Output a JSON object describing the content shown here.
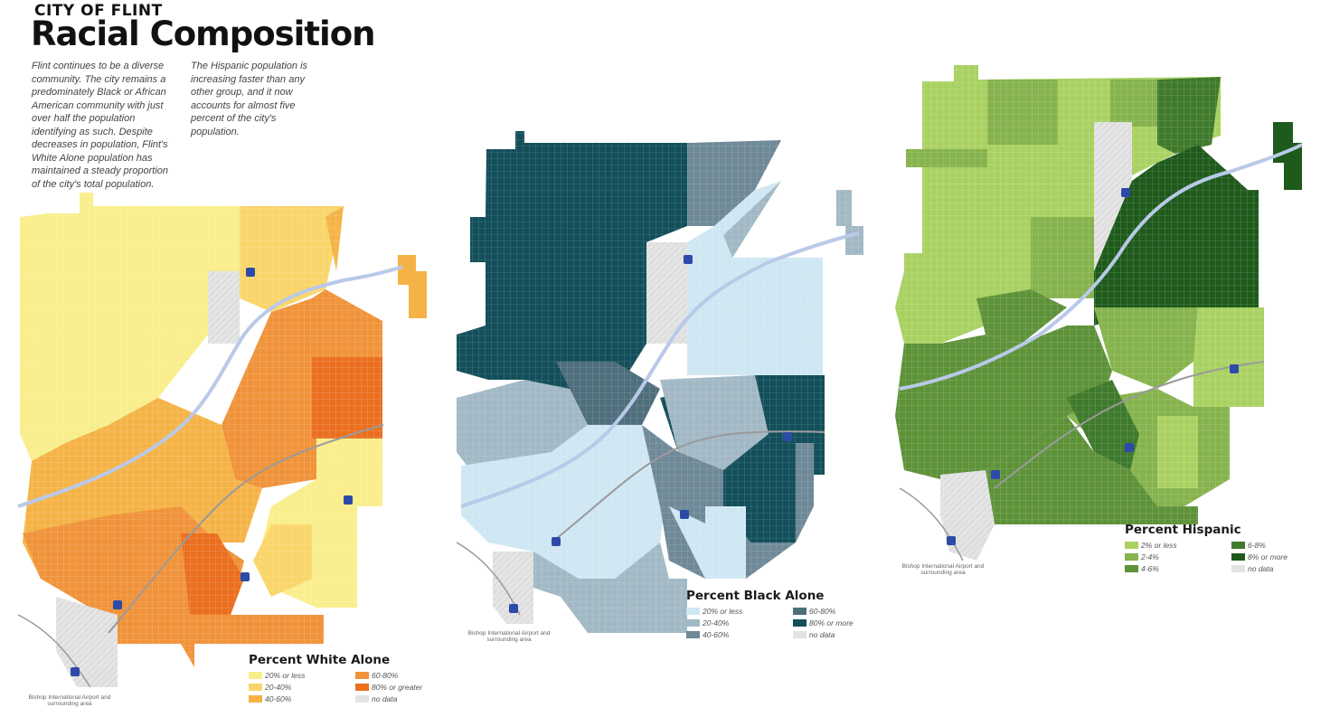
{
  "header": {
    "kicker": "CITY OF FLINT",
    "title": "Racial Composition"
  },
  "intro": {
    "paragraph_1": "Flint continues to be a diverse community. The city remains a predominately Black or African American community with just over half the population identifying as such. Despite decreases in population, Flint's White Alone population has maintained a steady proportion of the city's total population.",
    "paragraph_2": "The Hispanic population is increasing faster than any other group, and it now accounts for almost five percent of the city's population."
  },
  "maps": [
    {
      "legend_title": "Percent White Alone",
      "items": [
        {
          "label": "20% or less",
          "color": "#f9ee8c"
        },
        {
          "label": "60-80%",
          "color": "#f0933a"
        },
        {
          "label": "20-40%",
          "color": "#f9d56a"
        },
        {
          "label": "80% or greater",
          "color": "#ea6f1f"
        },
        {
          "label": "40-60%",
          "color": "#f5b347"
        },
        {
          "label": "no data",
          "color": "#e3e3e3"
        }
      ],
      "airport_label": "Bishop International Airport and surrounding area"
    },
    {
      "legend_title": "Percent Black Alone",
      "items": [
        {
          "label": "20% or less",
          "color": "#cfe7f3"
        },
        {
          "label": "60-80%",
          "color": "#4f6e7c"
        },
        {
          "label": "20-40%",
          "color": "#a2b9c5"
        },
        {
          "label": "80% or more",
          "color": "#134f5a"
        },
        {
          "label": "40-60%",
          "color": "#6f8998"
        },
        {
          "label": "no data",
          "color": "#e3e3e3"
        }
      ],
      "airport_label": "Bishop International Airport and surrounding area"
    },
    {
      "legend_title": "Percent Hispanic",
      "items": [
        {
          "label": "2% or less",
          "color": "#a9d162"
        },
        {
          "label": "6-8%",
          "color": "#3f7a2c"
        },
        {
          "label": "2-4%",
          "color": "#86b34d"
        },
        {
          "label": "8% or more",
          "color": "#1e5a1b"
        },
        {
          "label": "4-6%",
          "color": "#5e9239"
        },
        {
          "label": "no data",
          "color": "#e3e3e3"
        }
      ],
      "airport_label": "Bishop International Airport and surrounding area"
    }
  ]
}
